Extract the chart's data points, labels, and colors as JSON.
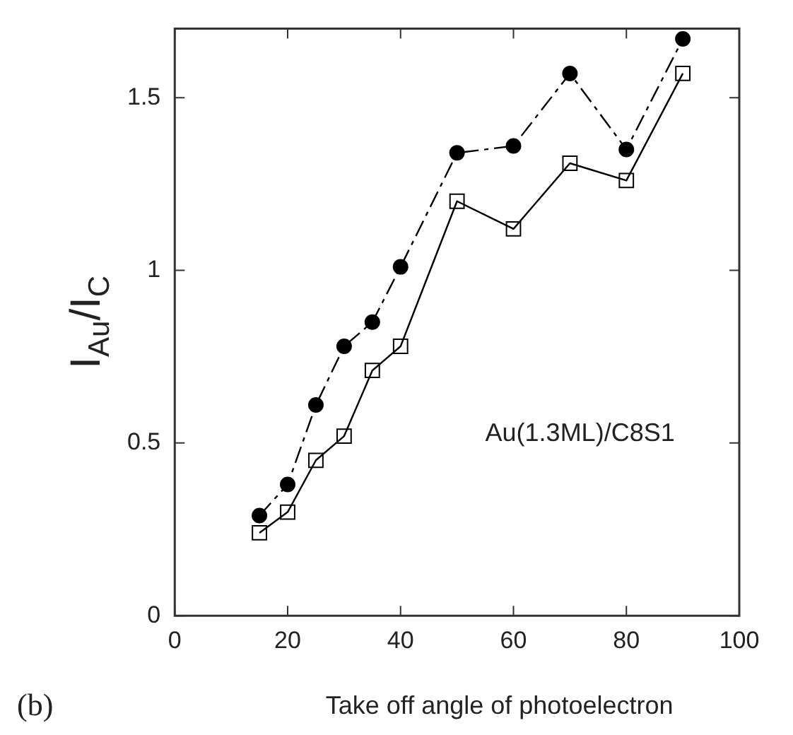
{
  "chart_data": {
    "type": "line",
    "xlabel": "Take off angle of photoelectron",
    "ylabel": "I$_{Au}$/I$_{C}$",
    "annotations": [
      "Au(1.3ML)/C8S1",
      "(b)"
    ],
    "x": [
      15,
      20,
      25,
      30,
      35,
      40,
      50,
      60,
      70,
      80,
      90
    ],
    "xlim": [
      0,
      100
    ],
    "xticks": [
      0,
      20,
      40,
      60,
      80,
      100
    ],
    "ylim": [
      0,
      1.7
    ],
    "yticks": [
      0,
      0.5,
      1,
      1.5
    ],
    "grid": false,
    "legend": false,
    "series": [
      {
        "color": "#000000",
        "marker": "circle",
        "line_style": "dashed",
        "values": [
          0.29,
          0.38,
          0.61,
          0.78,
          0.85,
          1.01,
          1.34,
          1.36,
          1.57,
          1.35,
          1.67
        ]
      },
      {
        "color": "#000000",
        "marker": "square",
        "line_style": "solid",
        "values": [
          0.24,
          0.3,
          0.45,
          0.52,
          0.71,
          0.78,
          1.2,
          1.12,
          1.31,
          1.26,
          1.57
        ]
      }
    ]
  }
}
